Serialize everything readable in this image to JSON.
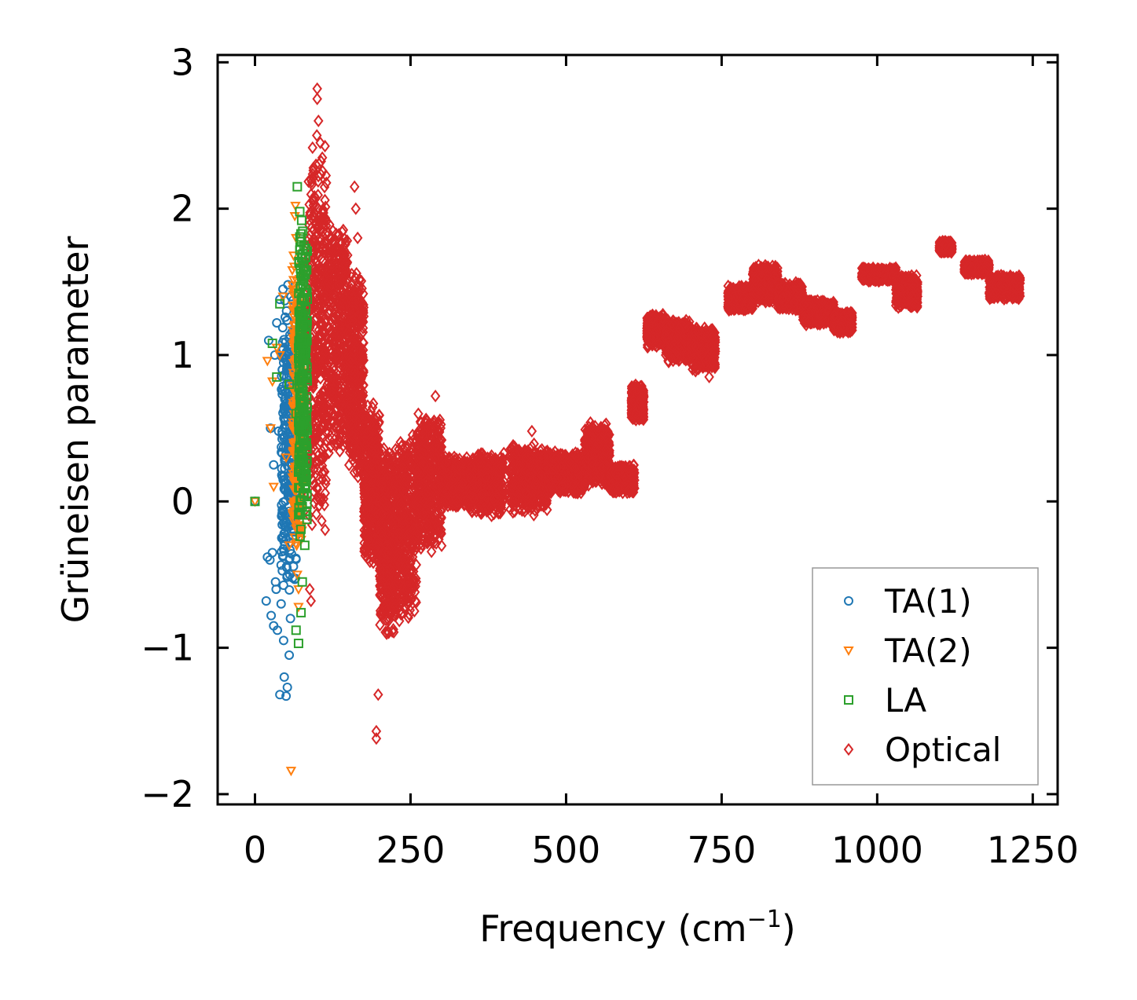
{
  "chart_data": {
    "type": "scatter",
    "title": "",
    "xlabel": "Frequency (cm",
    "xlabel_sup": "−1",
    "xlabel_close": ")",
    "ylabel": "Grüneisen parameter",
    "xlim": [
      -60,
      1290
    ],
    "ylim": [
      -2.07,
      3.05
    ],
    "xticks": [
      0,
      250,
      500,
      750,
      1000,
      1250
    ],
    "xtick_labels": [
      "0",
      "250",
      "500",
      "750",
      "1000",
      "1250"
    ],
    "yticks": [
      -2,
      -1,
      0,
      1,
      2,
      3
    ],
    "ytick_labels": [
      "−2",
      "−1",
      "0",
      "1",
      "2",
      "3"
    ],
    "grid": false,
    "legend_position": "bottom-right",
    "series": [
      {
        "name": "TA(1)",
        "marker": "circle",
        "color": "#1f77b4",
        "points": [
          [
            0,
            0
          ],
          [
            20,
            -0.38
          ],
          [
            22,
            1.1
          ],
          [
            24,
            -0.4
          ],
          [
            25,
            0.5
          ],
          [
            28,
            -0.35
          ],
          [
            30,
            0.25
          ],
          [
            30,
            -0.85
          ],
          [
            32,
            1.0
          ],
          [
            33,
            -0.55
          ],
          [
            35,
            1.22
          ],
          [
            36,
            -0.88
          ],
          [
            38,
            0.48
          ],
          [
            40,
            1.38
          ],
          [
            40,
            -1.32
          ],
          [
            42,
            -0.7
          ],
          [
            44,
            0.9
          ],
          [
            45,
            1.45
          ],
          [
            46,
            -0.95
          ],
          [
            47,
            -1.2
          ],
          [
            48,
            0.12
          ],
          [
            50,
            1.0
          ],
          [
            50,
            -1.33
          ],
          [
            52,
            -1.27
          ],
          [
            53,
            1.48
          ],
          [
            55,
            -1.05
          ],
          [
            55,
            0.7
          ],
          [
            56,
            -0.5
          ],
          [
            58,
            1.4
          ],
          [
            60,
            0.3
          ],
          [
            62,
            -0.2
          ],
          [
            64,
            1.1
          ],
          [
            18,
            -0.68
          ],
          [
            26,
            -0.78
          ],
          [
            34,
            -0.6
          ],
          [
            43,
            -0.25
          ],
          [
            51,
            0.85
          ],
          [
            57,
            -0.8
          ],
          [
            61,
            0.95
          ]
        ],
        "dense_band": {
          "x_range": [
            42,
            66
          ],
          "y_range": [
            -0.65,
            1.4
          ]
        }
      },
      {
        "name": "TA(2)",
        "marker": "triangle-down",
        "color": "#ff7f0e",
        "points": [
          [
            0,
            0
          ],
          [
            20,
            0.96
          ],
          [
            25,
            0.5
          ],
          [
            28,
            0.82
          ],
          [
            30,
            0.1
          ],
          [
            35,
            1.05
          ],
          [
            40,
            1.0
          ],
          [
            45,
            1.4
          ],
          [
            50,
            0.3
          ],
          [
            55,
            -0.3
          ],
          [
            58,
            -1.84
          ],
          [
            60,
            1.58
          ],
          [
            62,
            1.68
          ],
          [
            64,
            1.95
          ],
          [
            65,
            2.02
          ],
          [
            66,
            1.8
          ],
          [
            68,
            -0.5
          ],
          [
            70,
            -0.6
          ],
          [
            72,
            1.3
          ],
          [
            74,
            -0.2
          ],
          [
            76,
            0.7
          ],
          [
            70,
            -0.72
          ],
          [
            63,
            1.2
          ]
        ],
        "dense_band": {
          "x_range": [
            60,
            76
          ],
          "y_range": [
            -0.4,
            1.7
          ]
        }
      },
      {
        "name": "LA",
        "marker": "square",
        "color": "#2ca02c",
        "points": [
          [
            0,
            0
          ],
          [
            28,
            1.08
          ],
          [
            35,
            0.85
          ],
          [
            40,
            1.35
          ],
          [
            55,
            0.8
          ],
          [
            66,
            -0.88
          ],
          [
            68,
            2.15
          ],
          [
            70,
            -0.97
          ],
          [
            72,
            1.98
          ],
          [
            74,
            -0.76
          ],
          [
            75,
            1.92
          ],
          [
            76,
            -0.55
          ],
          [
            78,
            1.6
          ],
          [
            80,
            -0.3
          ],
          [
            82,
            1.2
          ],
          [
            66,
            0.6
          ],
          [
            70,
            0.2
          ]
        ],
        "dense_band": {
          "x_range": [
            70,
            84
          ],
          "y_range": [
            -0.3,
            1.9
          ]
        }
      },
      {
        "name": "Optical",
        "marker": "diamond",
        "color": "#d62728",
        "points": [
          [
            100,
            2.82
          ],
          [
            100,
            2.75
          ],
          [
            102,
            2.6
          ],
          [
            105,
            2.45
          ],
          [
            98,
            2.3
          ],
          [
            90,
            2.2
          ],
          [
            88,
            -0.6
          ],
          [
            90,
            -0.68
          ],
          [
            160,
            2.15
          ],
          [
            162,
            2.0
          ],
          [
            165,
            1.8
          ],
          [
            195,
            -1.57
          ],
          [
            195,
            -1.62
          ],
          [
            198,
            -1.32
          ],
          [
            290,
            0.72
          ],
          [
            445,
            0.48
          ],
          [
            1110,
            1.75
          ],
          [
            300,
            -0.05
          ],
          [
            640,
            1.25
          ],
          [
            730,
            0.85
          ]
        ],
        "bands": [
          {
            "x_range": [
              85,
              115
            ],
            "y_range": [
              -0.25,
              2.55
            ]
          },
          {
            "x_range": [
              115,
              150
            ],
            "y_range": [
              0.3,
              1.95
            ]
          },
          {
            "x_range": [
              150,
              175
            ],
            "y_range": [
              0.1,
              1.6
            ]
          },
          {
            "x_range": [
              175,
              200
            ],
            "y_range": [
              -0.45,
              0.7
            ]
          },
          {
            "x_range": [
              200,
              225
            ],
            "y_range": [
              -0.95,
              0.4
            ]
          },
          {
            "x_range": [
              225,
              260
            ],
            "y_range": [
              -0.85,
              0.5
            ]
          },
          {
            "x_range": [
              260,
              300
            ],
            "y_range": [
              -0.35,
              0.62
            ]
          },
          {
            "x_range": [
              300,
              345
            ],
            "y_range": [
              -0.05,
              0.32
            ]
          },
          {
            "x_range": [
              345,
              400
            ],
            "y_range": [
              -0.1,
              0.35
            ]
          },
          {
            "x_range": [
              410,
              470
            ],
            "y_range": [
              -0.1,
              0.4
            ]
          },
          {
            "x_range": [
              470,
              530
            ],
            "y_range": [
              0.05,
              0.35
            ]
          },
          {
            "x_range": [
              530,
              570
            ],
            "y_range": [
              0.1,
              0.55
            ]
          },
          {
            "x_range": [
              570,
              610
            ],
            "y_range": [
              0.05,
              0.25
            ]
          },
          {
            "x_range": [
              605,
              625
            ],
            "y_range": [
              0.55,
              0.8
            ]
          },
          {
            "x_range": [
              630,
              660
            ],
            "y_range": [
              1.05,
              1.28
            ]
          },
          {
            "x_range": [
              660,
              700
            ],
            "y_range": [
              0.95,
              1.25
            ]
          },
          {
            "x_range": [
              700,
              740
            ],
            "y_range": [
              0.88,
              1.2
            ]
          },
          {
            "x_range": [
              760,
              800
            ],
            "y_range": [
              1.3,
              1.48
            ]
          },
          {
            "x_range": [
              800,
              840
            ],
            "y_range": [
              1.35,
              1.62
            ]
          },
          {
            "x_range": [
              840,
              880
            ],
            "y_range": [
              1.3,
              1.5
            ]
          },
          {
            "x_range": [
              880,
              930
            ],
            "y_range": [
              1.2,
              1.38
            ]
          },
          {
            "x_range": [
              930,
              960
            ],
            "y_range": [
              1.15,
              1.3
            ]
          },
          {
            "x_range": [
              975,
              1030
            ],
            "y_range": [
              1.5,
              1.6
            ]
          },
          {
            "x_range": [
              1030,
              1065
            ],
            "y_range": [
              1.32,
              1.55
            ]
          },
          {
            "x_range": [
              1100,
              1120
            ],
            "y_range": [
              1.7,
              1.78
            ]
          },
          {
            "x_range": [
              1140,
              1180
            ],
            "y_range": [
              1.55,
              1.65
            ]
          },
          {
            "x_range": [
              1180,
              1230
            ],
            "y_range": [
              1.38,
              1.55
            ]
          }
        ]
      }
    ]
  }
}
